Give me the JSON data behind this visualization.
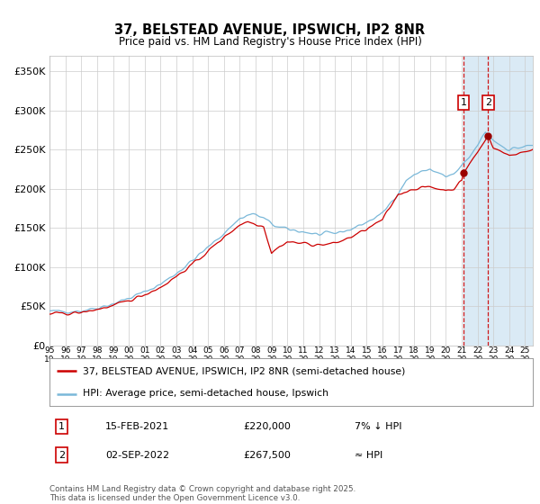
{
  "title": "37, BELSTEAD AVENUE, IPSWICH, IP2 8NR",
  "subtitle": "Price paid vs. HM Land Registry's House Price Index (HPI)",
  "ylabel_ticks": [
    "£0",
    "£50K",
    "£100K",
    "£150K",
    "£200K",
    "£250K",
    "£300K",
    "£350K"
  ],
  "ytick_values": [
    0,
    50000,
    100000,
    150000,
    200000,
    250000,
    300000,
    350000
  ],
  "ylim": [
    0,
    370000
  ],
  "xlim_start": 1995.0,
  "xlim_end": 2025.5,
  "transaction1": {
    "date_label": "15-FEB-2021",
    "price": 220000,
    "note": "7% ↓ HPI",
    "year": 2021.12
  },
  "transaction2": {
    "date_label": "02-SEP-2022",
    "price": 267500,
    "note": "≈ HPI",
    "year": 2022.67
  },
  "hpi_color": "#7ab8d9",
  "price_color": "#cc0000",
  "marker_color": "#990000",
  "dashed_line_color": "#cc0000",
  "shade_color": "#daeaf5",
  "grid_color": "#cccccc",
  "legend_label_price": "37, BELSTEAD AVENUE, IPSWICH, IP2 8NR (semi-detached house)",
  "legend_label_hpi": "HPI: Average price, semi-detached house, Ipswich",
  "footer": "Contains HM Land Registry data © Crown copyright and database right 2025.\nThis data is licensed under the Open Government Licence v3.0.",
  "xtick_years": [
    1995,
    1996,
    1997,
    1998,
    1999,
    2000,
    2001,
    2002,
    2003,
    2004,
    2005,
    2006,
    2007,
    2008,
    2009,
    2010,
    2011,
    2012,
    2013,
    2014,
    2015,
    2016,
    2017,
    2018,
    2019,
    2020,
    2021,
    2022,
    2023,
    2024,
    2025
  ]
}
